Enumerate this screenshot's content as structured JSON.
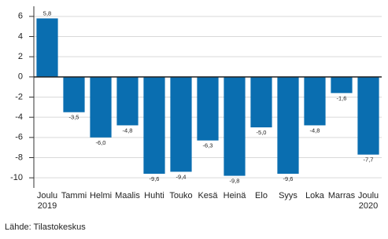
{
  "chart_data": {
    "type": "bar",
    "categories": [
      "Joulu 2019",
      "Tammi",
      "Helmi",
      "Maalis",
      "Huhti",
      "Touko",
      "Kesä",
      "Heinä",
      "Elo",
      "Syys",
      "Loka",
      "Marras",
      "Joulu 2020"
    ],
    "values": [
      5.8,
      -3.5,
      -6.0,
      -4.8,
      -9.6,
      -9.4,
      -6.3,
      -9.8,
      -5.0,
      -9.6,
      -4.8,
      -1.6,
      -7.7
    ],
    "value_labels": [
      "5,8",
      "-3,5",
      "-6,0",
      "-4,8",
      "-9,6",
      "-9,4",
      "-6,3",
      "-9,8",
      "-5,0",
      "-9,6",
      "-4,8",
      "-1,6",
      "-7,7"
    ],
    "color": "#0a6eb0",
    "ylim": [
      -11,
      7
    ],
    "yticks": [
      -10,
      -8,
      -6,
      -4,
      -2,
      0,
      2,
      4,
      6
    ],
    "grid": true,
    "source": "Lähde: Tilastokeskus"
  }
}
